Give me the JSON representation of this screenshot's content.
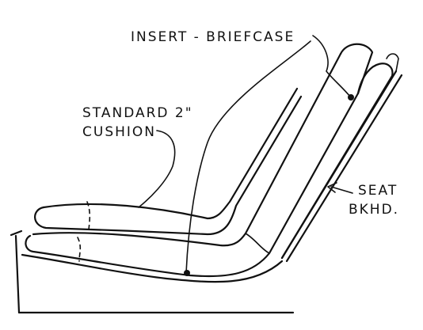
{
  "labels": {
    "insert": "INSERT - BRIEFCASE",
    "cushion_line1": "STANDARD 2\"",
    "cushion_line2": "CUSHION",
    "bulkhead_line1": "SEAT",
    "bulkhead_line2": "BKHD."
  }
}
